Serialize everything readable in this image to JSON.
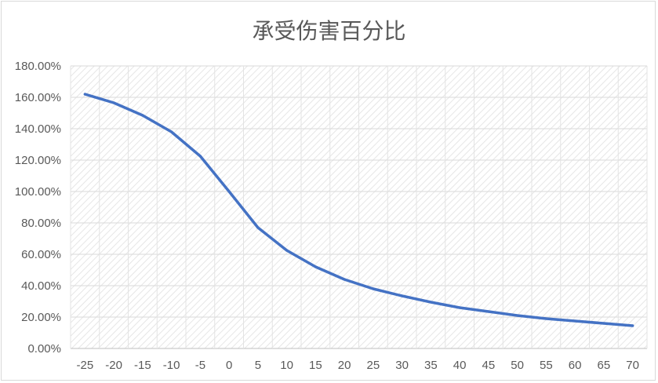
{
  "chart_data": {
    "type": "line",
    "title": "承受伤害百分比",
    "xlabel": "",
    "ylabel": "",
    "categories": [
      "-25",
      "-20",
      "-15",
      "-10",
      "-5",
      "0",
      "5",
      "10",
      "15",
      "20",
      "25",
      "30",
      "35",
      "40",
      "45",
      "50",
      "55",
      "60",
      "65",
      "70"
    ],
    "series": [
      {
        "values": [
          162.0,
          156.5,
          148.5,
          138.0,
          122.5,
          100.0,
          77.0,
          62.5,
          52.0,
          44.0,
          38.0,
          33.5,
          29.5,
          26.0,
          23.5,
          21.0,
          19.0,
          17.5,
          16.0,
          14.5
        ],
        "color": "#4472c4"
      }
    ],
    "ylim": [
      0,
      180
    ],
    "yticks": [
      "0.00%",
      "20.00%",
      "40.00%",
      "60.00%",
      "80.00%",
      "100.00%",
      "120.00%",
      "140.00%",
      "160.00%",
      "180.00%"
    ],
    "grid": true
  }
}
